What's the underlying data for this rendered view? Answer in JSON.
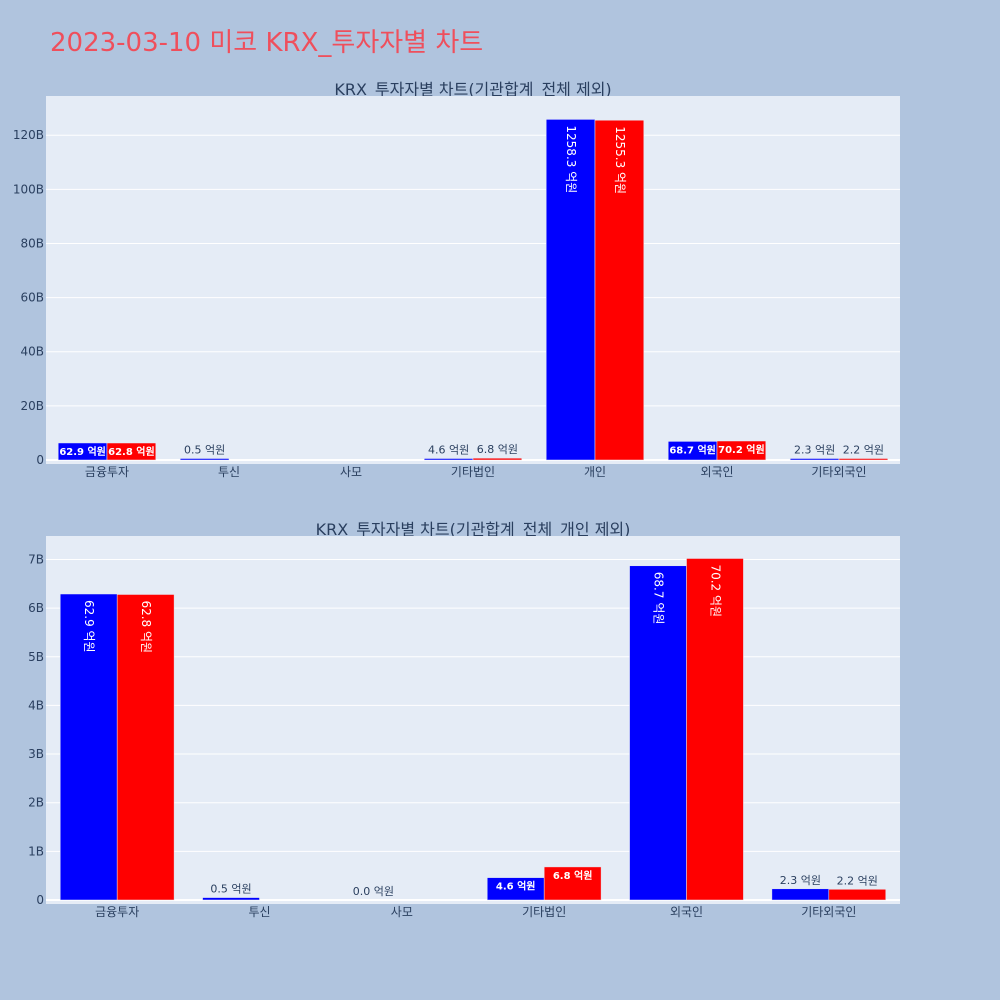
{
  "page": {
    "title": "2023-03-10 미코 KRX_투자자별 차트"
  },
  "colors": {
    "background": "#b0c4de",
    "plot_bg": "#e5ecf6",
    "buy": "#0000ff",
    "sell": "#ff0000",
    "title": "#ef4f5c",
    "text": "#2a3f5f"
  },
  "chart_data": [
    {
      "type": "bar",
      "title": "KRX_투자자별 차트(기관합계_전체 제외)",
      "categories": [
        "금융투자",
        "투신",
        "사모",
        "기타법인",
        "개인",
        "외국인",
        "기타외국인"
      ],
      "series": [
        {
          "color": "#0000ff",
          "values": [
            6.29,
            0.05,
            null,
            0.46,
            125.83,
            6.87,
            0.23
          ],
          "labels": [
            "62.9 억원",
            "0.5 억원",
            "",
            "4.6 억원",
            "1258.3 억원",
            "68.7 억원",
            "2.3 억원"
          ]
        },
        {
          "color": "#ff0000",
          "values": [
            6.28,
            null,
            null,
            0.68,
            125.53,
            7.02,
            0.22
          ],
          "labels": [
            "62.8 억원",
            "",
            "",
            "6.8 억원",
            "1255.3 억원",
            "70.2 억원",
            "2.2 억원"
          ]
        }
      ],
      "yticks": [
        "0",
        "20B",
        "40B",
        "60B",
        "80B",
        "100B",
        "120B"
      ],
      "ylim": [
        0,
        133
      ],
      "grid": true
    },
    {
      "type": "bar",
      "title": "KRX_투자자별 차트(기관합계_전체_개인 제외)",
      "categories": [
        "금융투자",
        "투신",
        "사모",
        "기타법인",
        "외국인",
        "기타외국인"
      ],
      "series": [
        {
          "color": "#0000ff",
          "values": [
            6.29,
            0.05,
            0.0,
            0.46,
            6.87,
            0.23
          ],
          "labels": [
            "62.9 억원",
            "0.5 억원",
            "0.0 억원",
            "4.6 억원",
            "68.7 억원",
            "2.3 억원"
          ]
        },
        {
          "color": "#ff0000",
          "values": [
            6.28,
            null,
            null,
            0.68,
            7.02,
            0.22
          ],
          "labels": [
            "62.8 억원",
            "",
            "",
            "6.8 억원",
            "70.2 억원",
            "2.2 억원"
          ]
        }
      ],
      "yticks": [
        "0",
        "1B",
        "2B",
        "3B",
        "4B",
        "5B",
        "6B",
        "7B"
      ],
      "ylim": [
        0,
        7.4
      ],
      "grid": true
    }
  ]
}
